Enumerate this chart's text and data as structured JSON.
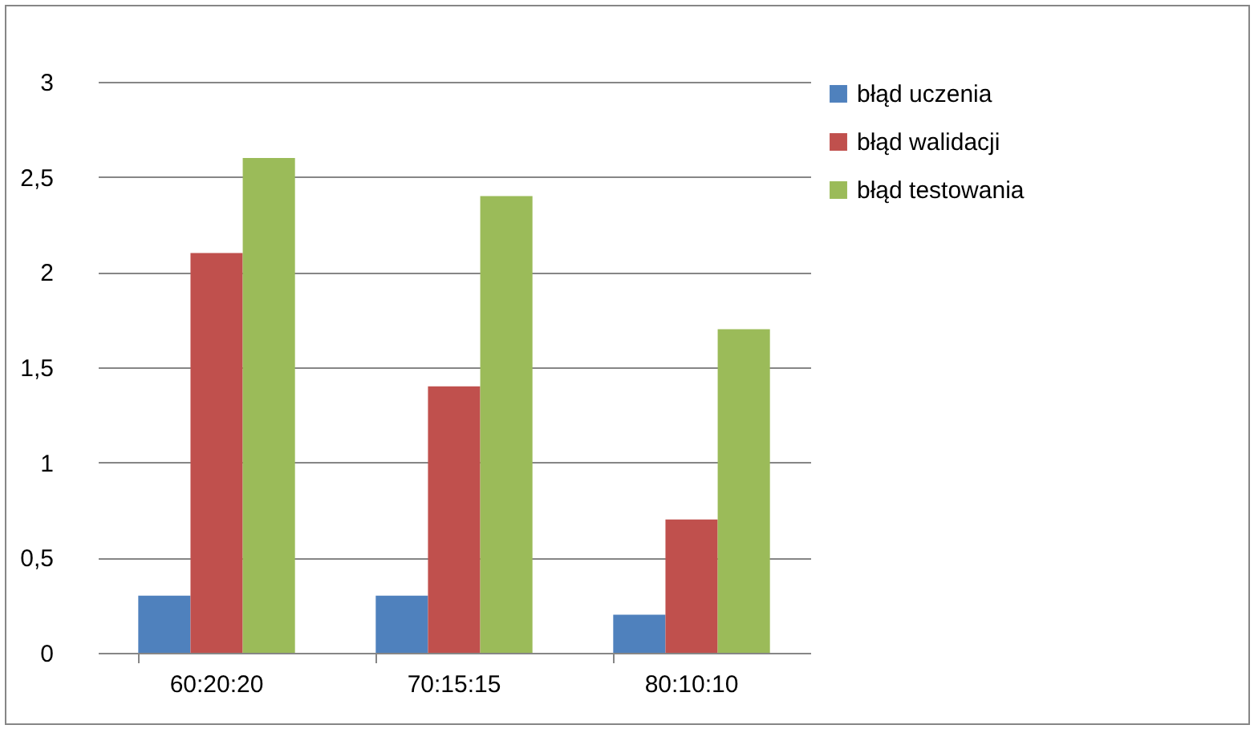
{
  "chart_data": {
    "type": "bar",
    "categories": [
      "60:20:20",
      "70:15:15",
      "80:10:10"
    ],
    "series": [
      {
        "name": "błąd uczenia",
        "color": "#4f81bd",
        "values": [
          0.3,
          0.3,
          0.2
        ]
      },
      {
        "name": "błąd walidacji",
        "color": "#c0504d",
        "values": [
          2.1,
          1.4,
          0.7
        ]
      },
      {
        "name": "błąd testowania",
        "color": "#9bbb59",
        "values": [
          2.6,
          2.4,
          1.7
        ]
      }
    ],
    "ylim": [
      0,
      3
    ],
    "yticks": [
      0,
      {
        "value": 0.5,
        "label": "0,5"
      },
      1,
      {
        "value": 1.5,
        "label": "1,5"
      },
      2,
      {
        "value": 2.5,
        "label": "2,5"
      },
      3
    ],
    "grid": "y",
    "legend": "right"
  }
}
